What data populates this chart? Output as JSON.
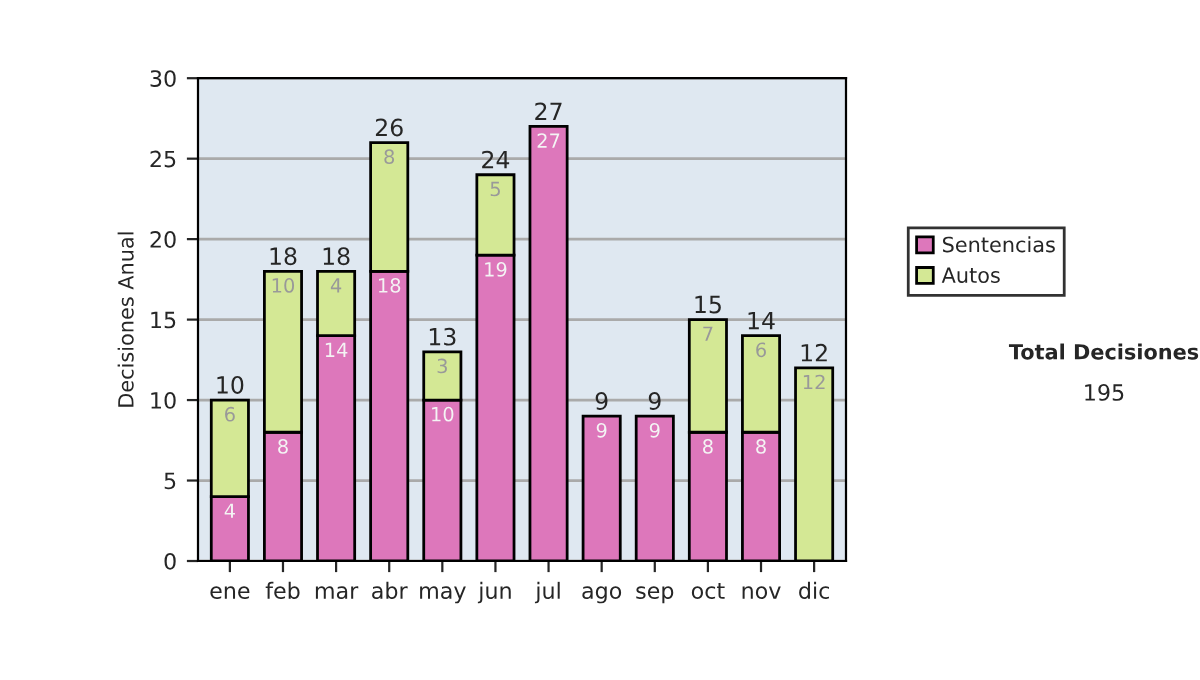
{
  "chart_data": {
    "type": "bar",
    "stacked": true,
    "ylabel": "Decisiones Anual",
    "categories": [
      "ene",
      "feb",
      "mar",
      "abr",
      "may",
      "jun",
      "jul",
      "ago",
      "sep",
      "oct",
      "nov",
      "dic"
    ],
    "series": [
      {
        "name": "Sentencias",
        "color": "#dd77bb",
        "values": [
          4,
          8,
          14,
          18,
          10,
          19,
          27,
          9,
          9,
          8,
          8,
          0
        ],
        "value_labels": [
          "4",
          "8",
          "14",
          "18",
          "10",
          "19",
          "27",
          "9",
          "9",
          "8",
          "8",
          null
        ]
      },
      {
        "name": "Autos",
        "color": "#d4e895",
        "values": [
          6,
          10,
          4,
          8,
          3,
          5,
          0,
          0,
          0,
          7,
          6,
          12
        ],
        "value_labels": [
          "6",
          "10",
          "4",
          "8",
          "3",
          "5",
          null,
          null,
          null,
          "7",
          "6",
          "12"
        ]
      }
    ],
    "totals": [
      "10",
      "18",
      "18",
      "26",
      "13",
      "24",
      "27",
      "9",
      "9",
      "15",
      "14",
      "12"
    ],
    "ylim": [
      0,
      30
    ],
    "yticks": [
      0,
      5,
      10,
      15,
      20,
      25,
      30
    ],
    "grid": "y",
    "legend": "right",
    "annotations": [
      "Total Decisiones",
      "195"
    ]
  }
}
